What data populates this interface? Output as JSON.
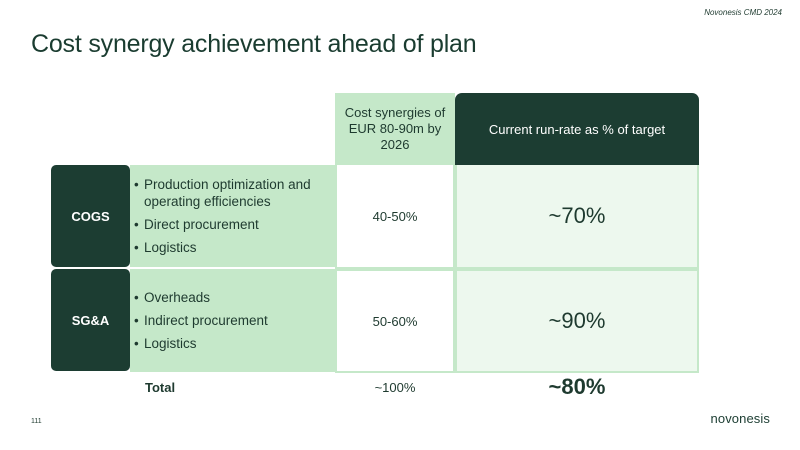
{
  "header": {
    "event": "Novonesis CMD 2024",
    "title": "Cost synergy achievement ahead of plan"
  },
  "table": {
    "col_synergies": "Cost synergies of EUR 80-90m by 2026",
    "col_runrate": "Current run-rate as % of target",
    "rows": [
      {
        "label": "COGS",
        "items": [
          "Production optimization and operating efficiencies",
          "Direct procurement",
          "Logistics"
        ],
        "synergies": "40-50%",
        "runrate": "~70%"
      },
      {
        "label": "SG&A",
        "items": [
          "Overheads",
          "Indirect procurement",
          "Logistics"
        ],
        "synergies": "50-60%",
        "runrate": "~90%"
      }
    ],
    "total": {
      "label": "Total",
      "synergies": "~100%",
      "runrate": "~80%"
    }
  },
  "footer": {
    "page_number": "111",
    "logo": "novonesis"
  },
  "colors": {
    "dark_green": "#1c3d32",
    "light_green": "#c5e8c9",
    "pale_green": "#edf8ee"
  }
}
